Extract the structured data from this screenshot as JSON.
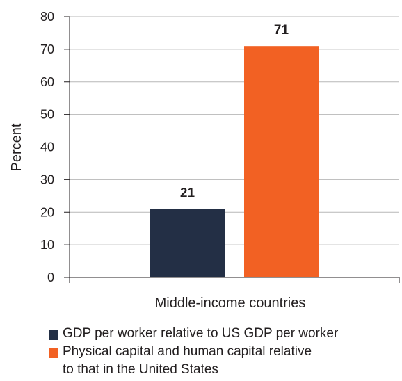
{
  "chart_data": {
    "type": "bar",
    "categories": [
      "Middle-income countries"
    ],
    "series": [
      {
        "name": "GDP per worker relative to US GDP per worker",
        "values": [
          21
        ],
        "color": "#232f45"
      },
      {
        "name": "Physical capital and human capital relative to that in the United States",
        "values": [
          71
        ],
        "color": "#f26123"
      }
    ],
    "data_labels": [
      "21",
      "71"
    ],
    "ylabel": "Percent",
    "xlabel": "Middle-income countries",
    "ylim": [
      0,
      80
    ],
    "yticks": [
      0,
      10,
      20,
      30,
      40,
      50,
      60,
      70,
      80
    ],
    "grid": true,
    "legend_position": "bottom"
  },
  "legend": {
    "items": [
      {
        "line1": "GDP per worker relative to US GDP per worker",
        "line2": ""
      },
      {
        "line1": "Physical capital and human capital relative",
        "line2": "to that in the United States"
      }
    ]
  }
}
